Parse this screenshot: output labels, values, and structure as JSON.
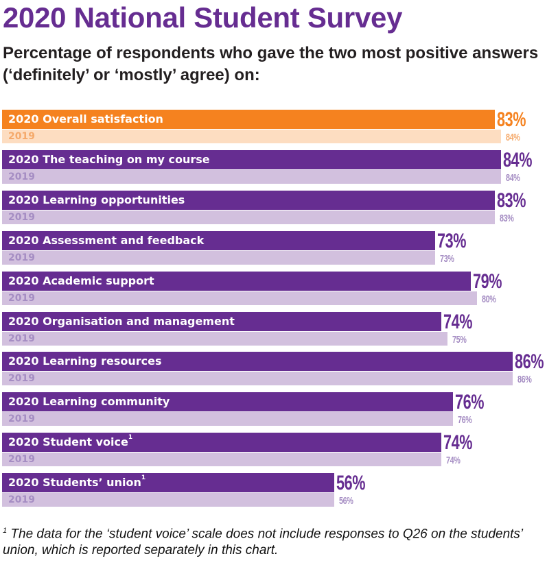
{
  "title": "2020 National Student Survey",
  "subtitle": "Percentage of respondents who gave the two most positive answers (‘definitely’ or ‘mostly’ agree) on:",
  "footnote": {
    "marker": "1",
    "text": " The data for the ‘student voice’ scale does not include responses to Q26 on the students’ union, which is reported separately in this chart."
  },
  "colors": {
    "highlight_2020": "#F5821F",
    "highlight_2019": "#FDDDC1",
    "highlight_2020_text": "#F5821F",
    "highlight_2019_text": "#F5A96A",
    "bar_2020": "#662D91",
    "bar_2019": "#D2C0DE",
    "text_2020": "#662D91",
    "text_2019": "#A58DC3"
  },
  "chart_data": {
    "type": "bar",
    "orientation": "horizontal",
    "xlim": [
      0,
      100
    ],
    "grid": false,
    "series": [
      {
        "name": "2020"
      },
      {
        "name": "2019"
      }
    ],
    "categories": [
      {
        "label": "Overall satisfaction",
        "note": "",
        "v2020": 83,
        "v2019": 84,
        "highlight": true
      },
      {
        "label": "The teaching on my course",
        "note": "",
        "v2020": 84,
        "v2019": 84
      },
      {
        "label": "Learning opportunities",
        "note": "",
        "v2020": 83,
        "v2019": 83
      },
      {
        "label": "Assessment and feedback",
        "note": "",
        "v2020": 73,
        "v2019": 73
      },
      {
        "label": "Academic support",
        "note": "",
        "v2020": 79,
        "v2019": 80
      },
      {
        "label": "Organisation and management",
        "note": "",
        "v2020": 74,
        "v2019": 75
      },
      {
        "label": "Learning resources",
        "note": "",
        "v2020": 86,
        "v2019": 86
      },
      {
        "label": "Learning community",
        "note": "",
        "v2020": 76,
        "v2019": 76
      },
      {
        "label": "Student voice",
        "note": "1",
        "v2020": 74,
        "v2019": 74
      },
      {
        "label": "Students’ union",
        "note": "1",
        "v2020": 56,
        "v2019": 56
      }
    ],
    "value_suffix": "%"
  }
}
